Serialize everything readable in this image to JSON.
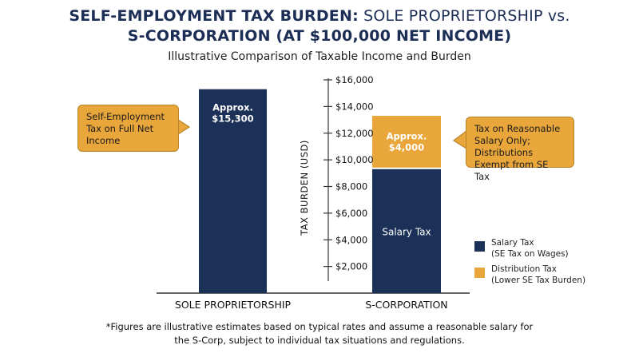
{
  "title": {
    "line1_bold": "SELF-EMPLOYMENT TAX BURDEN:",
    "line1_light": " SOLE PROPRIETORSHIP vs.",
    "line2": "S-CORPORATION (AT $100,000 NET INCOME)"
  },
  "subtitle": "Illustrative Comparison of Taxable Income and Burden",
  "colors": {
    "navy": "#1c3157",
    "amber": "#e9a63a"
  },
  "chart_data": {
    "type": "bar",
    "stacked": true,
    "categories": [
      "SOLE PROPRIETORSHIP",
      "S-CORPORATION"
    ],
    "ylabel": "TAX BURDEN (USD)",
    "ylim": [
      0,
      16000
    ],
    "yticks": [
      2000,
      4000,
      6000,
      8000,
      10000,
      12000,
      14000,
      16000
    ],
    "ytick_labels": [
      "$2,000",
      "$4,000",
      "$6,000",
      "$8,000",
      "$10,000",
      "$12,000",
      "$14,000",
      "$16,000"
    ],
    "series": [
      {
        "name": "Salary Tax",
        "values": [
          15300,
          9300
        ]
      },
      {
        "name": "Distribution Tax",
        "values": [
          0,
          4000
        ]
      }
    ],
    "data_labels": [
      {
        "category": 0,
        "series": 0,
        "line1": "Approx.",
        "line2": "$15,300"
      },
      {
        "category": 1,
        "series": 1,
        "line1": "Approx.",
        "line2": "$4,000"
      },
      {
        "category": 1,
        "series": 0,
        "line1": "Salary Tax",
        "line2": ""
      }
    ],
    "legend": {
      "position": "bottom-right",
      "items": [
        {
          "line1": "Salary Tax",
          "line2": "(SE Tax on Wages)",
          "color": "#1c3157"
        },
        {
          "line1": "Distribution Tax",
          "line2": "(Lower SE Tax Burden)",
          "color": "#e9a63a"
        }
      ]
    }
  },
  "callouts": {
    "left": "Self-Employment Tax on Full Net Income",
    "right": "Tax on Reasonable Salary Only; Distributions Exempt from SE Tax"
  },
  "footnote": {
    "line1": "*Figures are illustrative estimates based on typical rates and assume a reasonable salary for",
    "line2": "the S-Corp, subject to individual tax situations and regulations."
  }
}
